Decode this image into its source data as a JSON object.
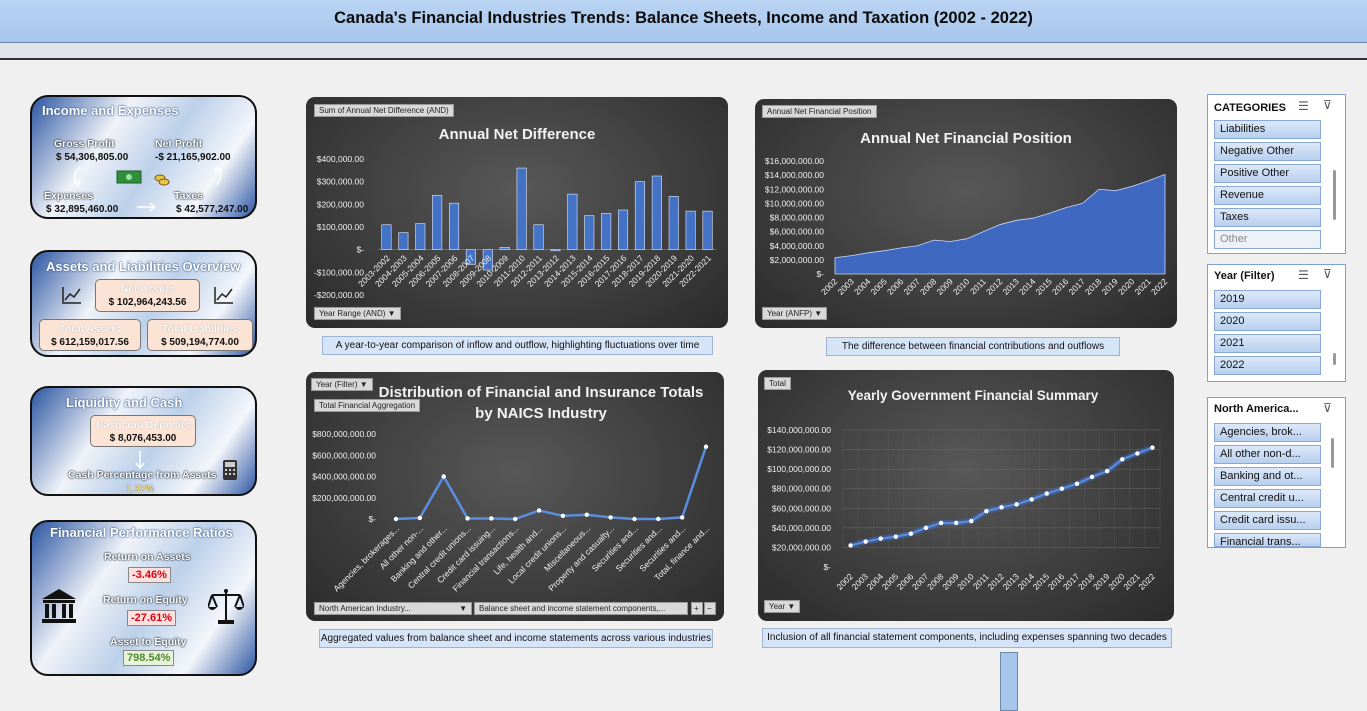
{
  "header": {
    "title": "Canada's Financial Industries Trends: Balance Sheets, Income and Taxation (2002 - 2022)"
  },
  "income": {
    "title": "Income and Expenses",
    "gross_label": "Gross Profit",
    "gross_value": "$  54,306,805.00",
    "net_label": "Net Profit",
    "net_value": "-$  21,165,902.00",
    "exp_label": "Expenses",
    "exp_value": "$  32,895,460.00",
    "tax_label": "Taxes",
    "tax_value": "$  42,577,247.00"
  },
  "assets": {
    "title": "Assets and Liabilities Overview",
    "net_label": "Net Assets",
    "net_value": "$  102,964,243.56",
    "total_label": "Total Assets",
    "total_value": "$  612,159,017.56",
    "liab_label": "Total Liabilities",
    "liab_value": "$  509,194,774.00"
  },
  "liquidity": {
    "title": "Liquidity and Cash",
    "cash_label": "Cash and Deposits",
    "cash_value": "$  8,076,453.00",
    "pct_label": "Cash Percentage from Assets",
    "pct_value": "1.32%"
  },
  "ratios": {
    "title": "Financial Performance Ratios",
    "roa_label": "Return on Assets",
    "roa_value": "-3.46%",
    "roe_label": "Return on Equity",
    "roe_value": "-27.61%",
    "ate_label": "Asset to Equity",
    "ate_value": "798.54%"
  },
  "colors": {
    "bar": "#4472c4",
    "area": "#3f68c0",
    "line": "#5b8ee0",
    "negative": "#e0000b",
    "positive": "#4e8a2e"
  },
  "chart1": {
    "tag": "Sum of Annual Net Difference (AND)",
    "filter": "Year Range (AND)",
    "caption": "A year-to-year comparison of inflow and outflow, highlighting fluctuations over time"
  },
  "chart2": {
    "tag": "Annual Net Financial Position",
    "filter": "Year (ANFP)",
    "caption": "The difference between financial contributions and outflows"
  },
  "chart3": {
    "tag": "Total Financial Aggregation",
    "filter": "Year (Filter)",
    "filter2": "North American Industry...",
    "filter3": "Balance sheet and income statement components,...",
    "caption": "Aggregated values from balance sheet and income statements across various industries"
  },
  "chart4": {
    "tag": "Total",
    "filter": "Year",
    "caption": "Inclusion of all financial statement components, including expenses spanning two decades"
  },
  "slicers": {
    "categories": {
      "title": "CATEGORIES",
      "items": [
        "Liabilities",
        "Negative Other",
        "Positive Other",
        "Revenue",
        "Taxes",
        "Other"
      ]
    },
    "year": {
      "title": "Year (Filter)",
      "items": [
        "2019",
        "2020",
        "2021",
        "2022"
      ]
    },
    "naics": {
      "title": "North America...",
      "items": [
        "Agencies, brok...",
        "All other non-d...",
        "Banking and ot...",
        "Central credit u...",
        "Credit card issu...",
        "Financial trans..."
      ]
    }
  },
  "chart_data": [
    {
      "type": "bar",
      "title": "Annual Net Difference",
      "categories": [
        "2003-2002",
        "2004-2003",
        "2005-2004",
        "2006-2005",
        "2007-2006",
        "2008-2007",
        "2009-2008",
        "2010-2009",
        "2011-2010",
        "2012-2011",
        "2013-2012",
        "2014-2013",
        "2015-2014",
        "2016-2015",
        "2017-2016",
        "2018-2017",
        "2019-2018",
        "2020-2019",
        "2021-2020",
        "2022-2021"
      ],
      "categories_shown": [
        "2003-2002",
        "2004-2003",
        "2005-2004",
        "2006-2005",
        "2007-2006",
        "2008-2007",
        "2009-2008",
        "2010-2009",
        "2011-2010",
        "2012-2011",
        "2013-2012",
        "2014-2013",
        "2015-2014",
        "2016-2015",
        "2017-2016",
        "2018-2017",
        "2019-2018",
        "2020-2019",
        "2021-2020",
        "2022-2021"
      ],
      "x_tick_labels": [
        "2003-2002",
        "2004-2003",
        "2005-2004",
        "2006-2005",
        "2007-2006",
        "2008-2007",
        "2009-2008",
        "2010-2009",
        "2011-2010",
        "2012-2011",
        "2013-2012",
        "2014-2013",
        "2015-2014",
        "2016-2015",
        "2017-2016",
        "2018-2017",
        "2019-2018",
        "2020-2019",
        "2021-2020",
        "2022-2021"
      ],
      "values": [
        110000,
        75000,
        115000,
        240000,
        205000,
        -65000,
        -90000,
        10000,
        360000,
        110000,
        -5000,
        245000,
        150000,
        160000,
        175000,
        300000,
        325000,
        235000,
        170000,
        170000
      ],
      "ylim": [
        -200000,
        400000
      ],
      "yticks": [
        "$400,000.00",
        "$300,000.00",
        "$200,000.00",
        "$100,000.00",
        "$-",
        "-$100,000.00",
        "-$200,000.00"
      ]
    },
    {
      "type": "area",
      "title": "Annual Net Financial Position",
      "x": [
        "2002",
        "2003",
        "2004",
        "2005",
        "2006",
        "2007",
        "2008",
        "2009",
        "2010",
        "2011",
        "2012",
        "2013",
        "2014",
        "2015",
        "2016",
        "2017",
        "2018",
        "2019",
        "2020",
        "2021",
        "2022"
      ],
      "values": [
        2300000,
        2600000,
        3000000,
        3300000,
        3700000,
        4000000,
        4800000,
        4600000,
        5000000,
        6000000,
        7000000,
        7600000,
        7900000,
        8600000,
        9400000,
        10000000,
        12000000,
        11800000,
        12400000,
        13200000,
        14100000
      ],
      "ylim": [
        0,
        16000000
      ],
      "yticks": [
        "$16,000,000.00",
        "$14,000,000.00",
        "$12,000,000.00",
        "$10,000,000.00",
        "$8,000,000.00",
        "$6,000,000.00",
        "$4,000,000.00",
        "$2,000,000.00",
        "$-"
      ]
    },
    {
      "type": "line",
      "title": "Distribution of Financial and Insurance Totals by NAICS Industry",
      "categories": [
        "Agencies, brokerages...",
        "All other non-...",
        "Banking and other...",
        "Central credit unions...",
        "Credit card issuing...",
        "Financial transactions...",
        "Life, health and...",
        "Local credit unions...",
        "Miscellaneous...",
        "Property and casualty...",
        "Securities and...",
        "Securities and...",
        "Securities and...",
        "Total, finance and..."
      ],
      "values": [
        0,
        10000000,
        400000000,
        5000000,
        5000000,
        0,
        80000000,
        30000000,
        40000000,
        15000000,
        0,
        0,
        15000000,
        680000000
      ],
      "ylim": [
        0,
        800000000
      ],
      "yticks": [
        "$800,000,000.00",
        "$600,000,000.00",
        "$400,000,000.00",
        "$200,000,000.00",
        "$-"
      ]
    },
    {
      "type": "line",
      "title": "Yearly Government Financial Summary",
      "x": [
        "2002",
        "2003",
        "2004",
        "2005",
        "2006",
        "2007",
        "2008",
        "2009",
        "2010",
        "2011",
        "2012",
        "2013",
        "2014",
        "2015",
        "2016",
        "2017",
        "2018",
        "2019",
        "2020",
        "2021",
        "2022"
      ],
      "values": [
        22000000,
        26000000,
        29000000,
        31000000,
        34000000,
        40000000,
        45000000,
        45000000,
        47000000,
        57000000,
        61000000,
        64000000,
        69000000,
        75000000,
        80000000,
        85000000,
        92000000,
        98000000,
        110000000,
        116000000,
        122000000
      ],
      "ylim": [
        0,
        140000000
      ],
      "yticks": [
        "$140,000,000.00",
        "$120,000,000.00",
        "$100,000,000.00",
        "$80,000,000.00",
        "$60,000,000.00",
        "$40,000,000.00",
        "$20,000,000.00",
        "$-"
      ]
    }
  ]
}
